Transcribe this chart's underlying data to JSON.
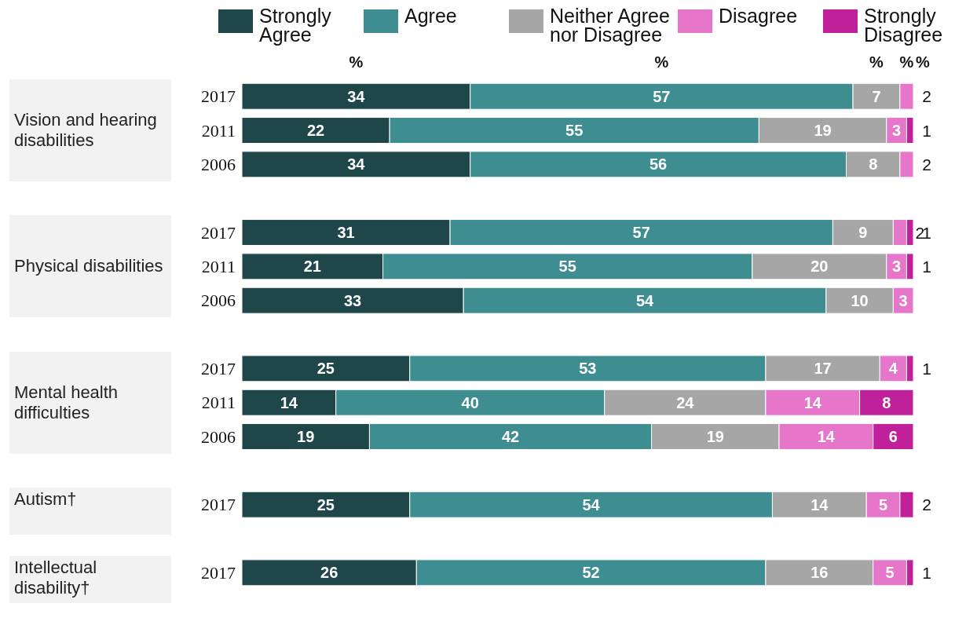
{
  "chart_data": {
    "type": "bar",
    "orientation": "horizontal",
    "stacked": true,
    "data_labels": true,
    "legend": "top",
    "categories": [
      "2017",
      "2011",
      "2006",
      null,
      "2017",
      "2011",
      "2006",
      null,
      "2017",
      "2011",
      "2006",
      null,
      "2017",
      null,
      "2017"
    ],
    "series": [
      {
        "name": "Strongly Agree",
        "color": "#1f4749",
        "values": [
          34,
          22,
          34,
          null,
          31,
          21,
          33,
          null,
          25,
          14,
          19,
          null,
          25,
          null,
          26
        ]
      },
      {
        "name": "Agree",
        "color": "#3d8d91",
        "values": [
          57,
          55,
          56,
          null,
          57,
          55,
          54,
          null,
          53,
          40,
          42,
          null,
          54,
          null,
          52
        ]
      },
      {
        "name": "Neither Agree nor Disagree",
        "color": "#a6a6a6",
        "values": [
          7,
          19,
          8,
          null,
          9,
          20,
          10,
          null,
          17,
          24,
          19,
          null,
          14,
          null,
          16
        ]
      },
      {
        "name": "Disagree",
        "color": "#e676c9",
        "values": [
          2,
          3,
          2,
          null,
          2,
          3,
          3,
          null,
          4,
          14,
          14,
          null,
          5,
          null,
          5
        ]
      },
      {
        "name": "Strongly Disagree",
        "color": "#c0209a",
        "values": [
          null,
          1,
          null,
          null,
          1,
          1,
          null,
          null,
          1,
          8,
          6,
          null,
          2,
          null,
          1
        ]
      }
    ],
    "annotations": [
      "Vision and hearing disabilities",
      "Physical disabilities",
      "Mental health difficulties",
      "Autism†",
      "Intellectual disability†",
      "%",
      "%",
      "%",
      "%",
      "%"
    ]
  }
}
